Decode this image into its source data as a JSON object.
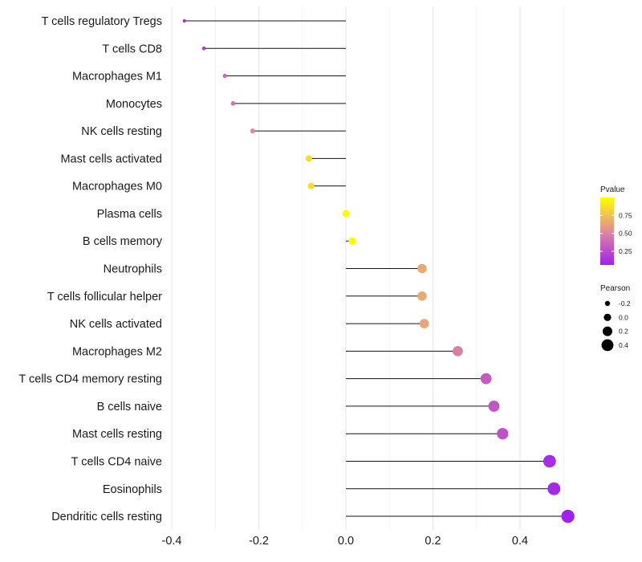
{
  "chart_data": {
    "type": "lollipop",
    "title": "",
    "xlabel": "",
    "ylabel": "",
    "xlim": [
      -0.4,
      0.55
    ],
    "xticks": [
      -0.4,
      -0.2,
      0.0,
      0.2,
      0.4
    ],
    "xtick_labels": [
      "-0.4",
      "-0.2",
      "0.0",
      "0.2",
      "0.4"
    ],
    "grid": true,
    "categories": [
      "T cells regulatory  Tregs",
      "T cells CD8",
      "Macrophages M1",
      "Monocytes",
      "NK cells resting",
      "Mast cells activated",
      "Macrophages M0",
      "Plasma cells",
      "B cells memory",
      "Neutrophils",
      "T cells follicular helper",
      "NK cells activated",
      "Macrophages M2",
      "T cells CD4 memory resting",
      "B cells naive",
      "Mast cells resting",
      "T cells CD4 naive",
      "Eosinophils",
      "Dendritic cells resting"
    ],
    "pearson": [
      -0.371,
      -0.326,
      -0.278,
      -0.259,
      -0.214,
      -0.085,
      -0.08,
      0.0,
      0.015,
      0.175,
      0.175,
      0.18,
      0.257,
      0.322,
      0.34,
      0.36,
      0.468,
      0.478,
      0.51
    ],
    "pvalue": [
      0.1,
      0.15,
      0.38,
      0.42,
      0.52,
      0.86,
      0.86,
      0.99,
      0.98,
      0.66,
      0.66,
      0.64,
      0.48,
      0.32,
      0.3,
      0.28,
      0.12,
      0.1,
      0.06
    ],
    "legend_color": {
      "title": "Pvalue",
      "breaks": [
        0.25,
        0.5,
        0.75
      ],
      "labels": [
        "0.25",
        "0.50",
        "0.75"
      ],
      "range": [
        0.06,
        1.0
      ],
      "low_color": "#a020f0",
      "mid_color": "#e2899b",
      "high_color": "#ffff00"
    },
    "legend_size": {
      "title": "Pearson",
      "values": [
        -0.2,
        0.0,
        0.2,
        0.4
      ],
      "labels": [
        "-0.2",
        "0.0",
        "0.2",
        "0.4"
      ]
    },
    "legend_position": "right"
  }
}
